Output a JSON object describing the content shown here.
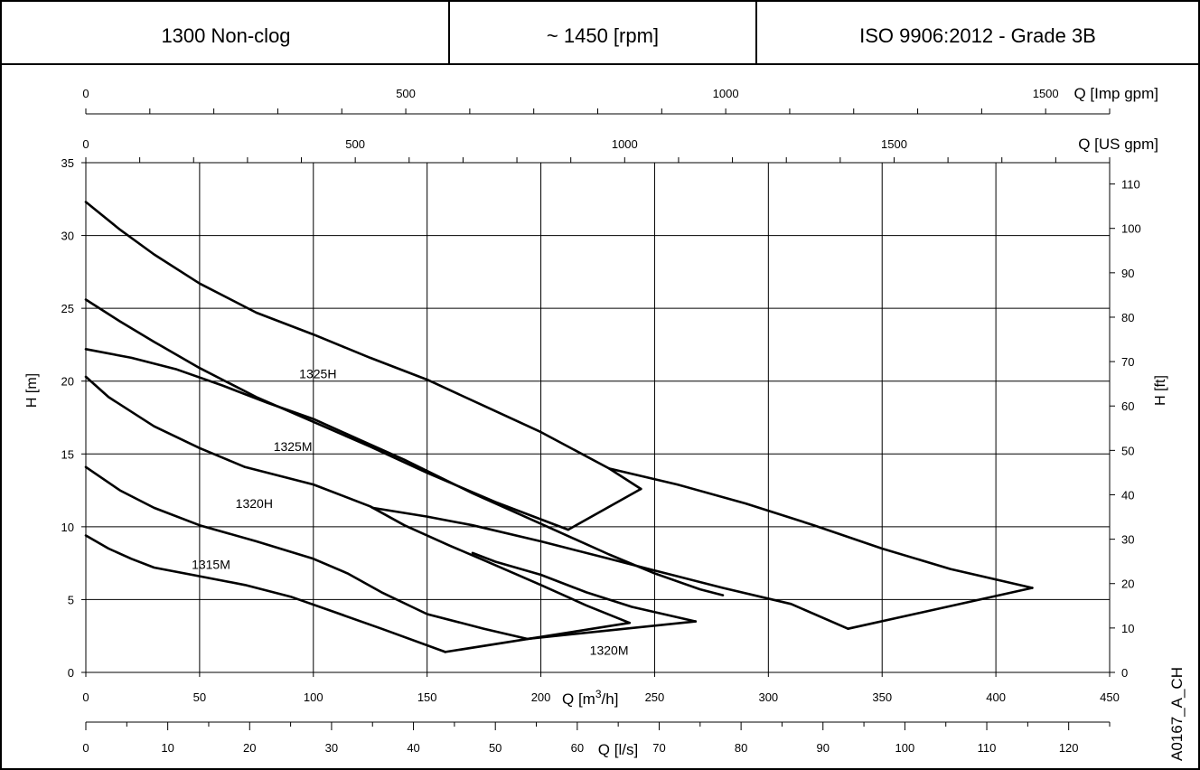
{
  "header": {
    "model": "1300 Non-clog",
    "speed": "~ 1450 [rpm]",
    "standard": "ISO 9906:2012 - Grade 3B"
  },
  "drawing_id": "A0167_A_CH",
  "chart_data": {
    "type": "line",
    "grid": true,
    "axes": {
      "imp_gpm": {
        "label": "Q [Imp gpm]",
        "range": [
          0,
          1600
        ],
        "tick_labels": [
          "0",
          "500",
          "1000",
          "1500"
        ],
        "major": [
          0,
          500,
          1000,
          1500
        ],
        "minor_step": 100
      },
      "us_gpm": {
        "label": "Q [US gpm]",
        "range": [
          0,
          1900
        ],
        "tick_labels": [
          "0",
          "500",
          "1000",
          "1500"
        ],
        "major": [
          0,
          500,
          1000,
          1500
        ],
        "minor_step": 100
      },
      "q_m3h": {
        "label_prefix": "Q [m",
        "label_sup": "3",
        "label_suffix": "/h]",
        "range": [
          0,
          450
        ],
        "tick_labels": [
          "0",
          "50",
          "100",
          "150",
          "200",
          "250",
          "300",
          "350",
          "400",
          "450"
        ]
      },
      "q_ls": {
        "label": "Q [l/s]",
        "range": [
          0,
          125
        ],
        "tick_labels": [
          "0",
          "10",
          "20",
          "30",
          "40",
          "50",
          "60",
          "70",
          "80",
          "90",
          "100",
          "110",
          "120"
        ]
      },
      "h_m": {
        "label": "H [m]",
        "range": [
          0,
          35
        ],
        "tick_labels": [
          "0",
          "5",
          "10",
          "15",
          "20",
          "25",
          "30",
          "35"
        ]
      },
      "h_ft": {
        "label": "H [ft]",
        "range": [
          0,
          114.8
        ],
        "tick_labels": [
          "0",
          "10",
          "20",
          "30",
          "40",
          "50",
          "60",
          "70",
          "80",
          "90",
          "100",
          "110"
        ]
      }
    },
    "series": [
      {
        "name": "1315M",
        "upper": [
          [
            0,
            9.4
          ],
          [
            10,
            8.5
          ],
          [
            20,
            7.8
          ],
          [
            30,
            7.2
          ],
          [
            50,
            6.6
          ],
          [
            70,
            6.0
          ],
          [
            90,
            5.2
          ],
          [
            110,
            4.1
          ],
          [
            130,
            3.0
          ],
          [
            158,
            1.4
          ]
        ],
        "lower": [
          [
            0,
            14.1
          ],
          [
            15,
            12.5
          ],
          [
            30,
            11.3
          ],
          [
            50,
            10.1
          ],
          [
            75,
            9.0
          ],
          [
            100,
            7.8
          ],
          [
            115,
            6.8
          ],
          [
            130,
            5.5
          ],
          [
            150,
            4.0
          ],
          [
            175,
            3.0
          ],
          [
            194,
            2.3
          ]
        ],
        "closing": [
          [
            158,
            1.4
          ],
          [
            239,
            3.4
          ]
        ]
      },
      {
        "name": "1320H",
        "upper": [
          [
            0,
            20.3
          ],
          [
            10,
            18.9
          ],
          [
            30,
            16.9
          ],
          [
            50,
            15.4
          ],
          [
            70,
            14.1
          ],
          [
            100,
            12.9
          ],
          [
            125,
            11.4
          ],
          [
            140,
            10.1
          ],
          [
            160,
            8.7
          ],
          [
            175,
            7.7
          ],
          [
            200,
            6.0
          ],
          [
            220,
            4.6
          ],
          [
            239,
            3.4
          ]
        ],
        "lower": [
          [
            170,
            8.2
          ],
          [
            180,
            7.6
          ],
          [
            200,
            6.7
          ],
          [
            220,
            5.5
          ],
          [
            240,
            4.5
          ],
          [
            268,
            3.5
          ]
        ],
        "closing": [
          [
            194,
            2.3
          ],
          [
            268,
            3.5
          ]
        ]
      },
      {
        "name": "1320M",
        "upper": [
          [
            126,
            11.3
          ],
          [
            150,
            10.7
          ],
          [
            170,
            10.1
          ],
          [
            200,
            9.0
          ],
          [
            230,
            7.8
          ],
          [
            250,
            7.0
          ],
          [
            280,
            5.8
          ],
          [
            310,
            4.7
          ],
          [
            335,
            3.0
          ]
        ],
        "lower": [
          [
            0,
            22.2
          ],
          [
            20,
            21.6
          ],
          [
            40,
            20.8
          ],
          [
            60,
            19.7
          ],
          [
            80,
            18.5
          ],
          [
            100,
            17.4
          ],
          [
            120,
            16.0
          ],
          [
            140,
            14.6
          ],
          [
            170,
            12.3
          ],
          [
            200,
            10.2
          ],
          [
            230,
            8.1
          ],
          [
            250,
            6.8
          ],
          [
            270,
            5.7
          ],
          [
            280,
            5.3
          ]
        ],
        "closing": [
          [
            335,
            3.0
          ],
          [
            416,
            5.8
          ]
        ]
      },
      {
        "name": "1325M",
        "upper": [
          [
            0,
            25.6
          ],
          [
            15,
            24.1
          ],
          [
            30,
            22.7
          ],
          [
            50,
            20.9
          ],
          [
            75,
            18.9
          ],
          [
            100,
            17.2
          ],
          [
            125,
            15.5
          ],
          [
            150,
            13.7
          ],
          [
            180,
            11.7
          ],
          [
            212,
            9.8
          ]
        ],
        "closing": [
          [
            212,
            9.8
          ],
          [
            244,
            12.6
          ]
        ]
      },
      {
        "name": "1325H",
        "upper": [
          [
            0,
            32.3
          ],
          [
            15,
            30.4
          ],
          [
            30,
            28.7
          ],
          [
            50,
            26.7
          ],
          [
            75,
            24.7
          ],
          [
            100,
            23.2
          ],
          [
            125,
            21.6
          ],
          [
            150,
            20.1
          ],
          [
            175,
            18.3
          ],
          [
            200,
            16.5
          ],
          [
            230,
            14.0
          ],
          [
            244,
            12.6
          ]
        ],
        "lower": [
          [
            230,
            14.0
          ],
          [
            260,
            12.9
          ],
          [
            290,
            11.6
          ],
          [
            320,
            10.1
          ],
          [
            350,
            8.5
          ],
          [
            380,
            7.1
          ],
          [
            416,
            5.8
          ]
        ]
      }
    ],
    "curve_labels": [
      {
        "text": "1325H",
        "q": 102,
        "h": 20.2
      },
      {
        "text": "1325M",
        "q": 91,
        "h": 15.2
      },
      {
        "text": "1320H",
        "q": 74,
        "h": 11.3
      },
      {
        "text": "1315M",
        "q": 55,
        "h": 7.1
      },
      {
        "text": "1320M",
        "q": 230,
        "h": 1.2
      }
    ]
  }
}
